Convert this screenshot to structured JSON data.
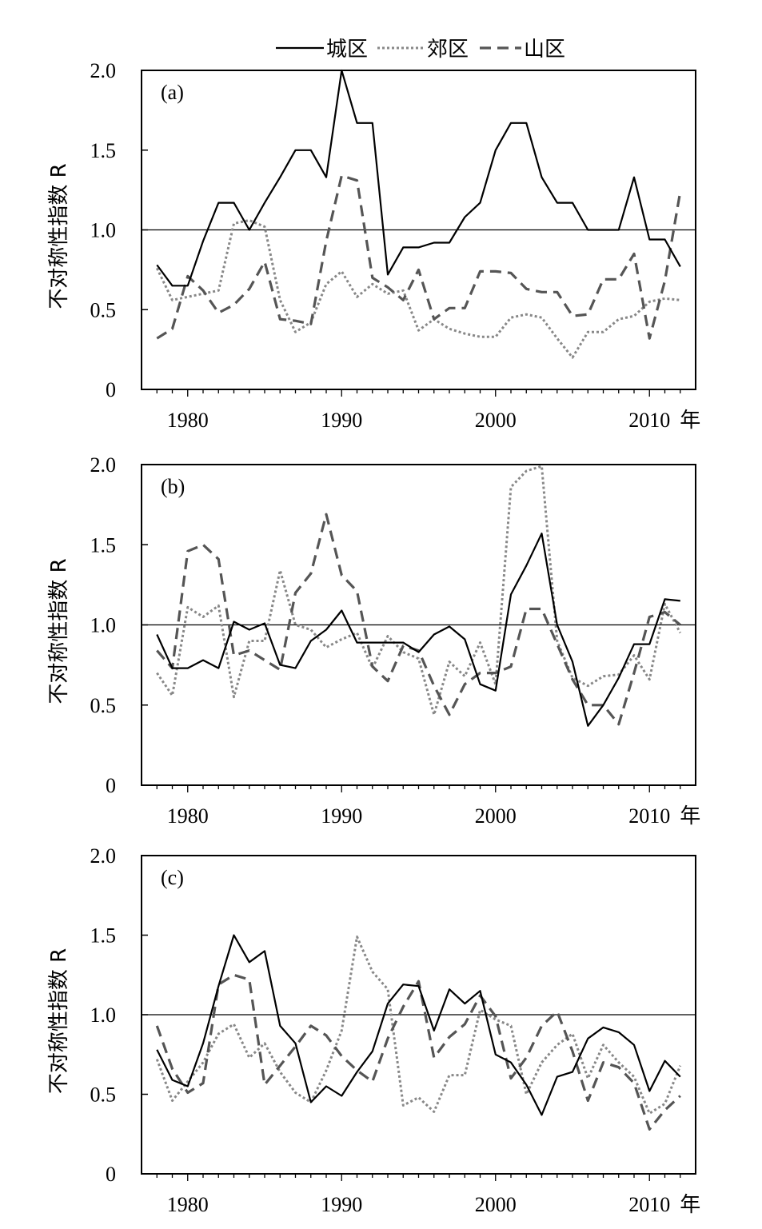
{
  "legend": [
    {
      "label": "城区",
      "style": "solid",
      "color": "#000000"
    },
    {
      "label": "郊区",
      "style": "dotted",
      "color": "#888888"
    },
    {
      "label": "山区",
      "style": "dashed",
      "color": "#555555"
    }
  ],
  "chart_data": [
    {
      "type": "line",
      "panel_label": "(a)",
      "ylabel": "不对称性指数 R",
      "xlabel": "年",
      "xlim": [
        1977,
        2013
      ],
      "ylim": [
        0,
        2.0
      ],
      "x_ticks": [
        "1980",
        "1990",
        "2000",
        "2010"
      ],
      "x_unit": "年",
      "y_ticks": [
        "0",
        "0.5",
        "1.0",
        "1.5",
        "2.0"
      ],
      "reference_line": 1.0,
      "x": [
        1978,
        1979,
        1980,
        1981,
        1982,
        1983,
        1984,
        1985,
        1986,
        1987,
        1988,
        1989,
        1990,
        1991,
        1992,
        1993,
        1994,
        1995,
        1996,
        1997,
        1998,
        1999,
        2000,
        2001,
        2002,
        2003,
        2004,
        2005,
        2006,
        2007,
        2008,
        2009,
        2010,
        2011,
        2012
      ],
      "series": [
        {
          "name": "城区",
          "values": [
            0.78,
            0.65,
            0.65,
            0.93,
            1.17,
            1.17,
            1.0,
            1.17,
            1.33,
            1.5,
            1.5,
            1.33,
            2.0,
            1.67,
            1.67,
            0.72,
            0.89,
            0.89,
            0.92,
            0.92,
            1.08,
            1.17,
            1.5,
            1.67,
            1.67,
            1.33,
            1.17,
            1.17,
            1.0,
            1.0,
            1.0,
            1.33,
            0.94,
            0.94,
            0.77
          ]
        },
        {
          "name": "郊区",
          "values": [
            0.76,
            0.56,
            0.58,
            0.6,
            0.62,
            1.04,
            1.06,
            1.02,
            0.56,
            0.36,
            0.42,
            0.66,
            0.74,
            0.58,
            0.66,
            0.6,
            0.62,
            0.37,
            0.44,
            0.38,
            0.35,
            0.33,
            0.33,
            0.45,
            0.47,
            0.45,
            0.32,
            0.2,
            0.36,
            0.36,
            0.44,
            0.46,
            0.55,
            0.57,
            0.56
          ]
        },
        {
          "name": "山区",
          "values": [
            0.32,
            0.38,
            0.71,
            0.62,
            0.48,
            0.53,
            0.63,
            0.8,
            0.44,
            0.43,
            0.41,
            0.93,
            1.34,
            1.31,
            0.7,
            0.64,
            0.56,
            0.75,
            0.44,
            0.51,
            0.51,
            0.74,
            0.74,
            0.73,
            0.63,
            0.61,
            0.61,
            0.46,
            0.47,
            0.69,
            0.69,
            0.85,
            0.32,
            0.68,
            1.24
          ]
        }
      ]
    },
    {
      "type": "line",
      "panel_label": "(b)",
      "ylabel": "不对称性指数 R",
      "xlabel": "年",
      "xlim": [
        1977,
        2013
      ],
      "ylim": [
        0,
        2.0
      ],
      "x_ticks": [
        "1980",
        "1990",
        "2000",
        "2010"
      ],
      "x_unit": "年",
      "y_ticks": [
        "0",
        "0.5",
        "1.0",
        "1.5",
        "2.0"
      ],
      "reference_line": 1.0,
      "x": [
        1978,
        1979,
        1980,
        1981,
        1982,
        1983,
        1984,
        1985,
        1986,
        1987,
        1988,
        1989,
        1990,
        1991,
        1992,
        1993,
        1994,
        1995,
        1996,
        1997,
        1998,
        1999,
        2000,
        2001,
        2002,
        2003,
        2004,
        2005,
        2006,
        2007,
        2008,
        2009,
        2010,
        2011,
        2012
      ],
      "series": [
        {
          "name": "城区",
          "values": [
            0.94,
            0.73,
            0.73,
            0.78,
            0.73,
            1.02,
            0.97,
            1.01,
            0.75,
            0.73,
            0.9,
            0.97,
            1.09,
            0.89,
            0.89,
            0.89,
            0.89,
            0.83,
            0.94,
            0.99,
            0.91,
            0.63,
            0.59,
            1.19,
            1.37,
            1.57,
            1.0,
            0.77,
            0.37,
            0.5,
            0.67,
            0.88,
            0.88,
            1.16,
            1.15
          ]
        },
        {
          "name": "郊区",
          "values": [
            0.7,
            0.56,
            1.11,
            1.05,
            1.12,
            0.55,
            0.9,
            0.9,
            1.34,
            1.0,
            0.97,
            0.86,
            0.91,
            0.95,
            0.73,
            0.93,
            0.83,
            0.79,
            0.44,
            0.77,
            0.68,
            0.89,
            0.63,
            1.86,
            1.96,
            1.99,
            0.9,
            0.67,
            0.62,
            0.68,
            0.69,
            0.81,
            0.66,
            1.13,
            0.95
          ]
        },
        {
          "name": "山区",
          "values": [
            0.84,
            0.73,
            1.46,
            1.5,
            1.41,
            0.81,
            0.84,
            0.78,
            0.72,
            1.2,
            1.32,
            1.69,
            1.31,
            1.21,
            0.74,
            0.65,
            0.87,
            0.84,
            0.62,
            0.44,
            0.63,
            0.7,
            0.7,
            0.74,
            1.1,
            1.1,
            0.88,
            0.66,
            0.5,
            0.5,
            0.38,
            0.7,
            1.05,
            1.08,
            1.0
          ]
        }
      ]
    },
    {
      "type": "line",
      "panel_label": "(c)",
      "ylabel": "不对称性指数 R",
      "xlabel": "年",
      "xlim": [
        1977,
        2013
      ],
      "ylim": [
        0,
        2.0
      ],
      "x_ticks": [
        "1980",
        "1990",
        "2000",
        "2010"
      ],
      "x_unit": "年",
      "y_ticks": [
        "0",
        "0.5",
        "1.0",
        "1.5",
        "2.0"
      ],
      "reference_line": 1.0,
      "x": [
        1978,
        1979,
        1980,
        1981,
        1982,
        1983,
        1984,
        1985,
        1986,
        1987,
        1988,
        1989,
        1990,
        1991,
        1992,
        1993,
        1994,
        1995,
        1996,
        1997,
        1998,
        1999,
        2000,
        2001,
        2002,
        2003,
        2004,
        2005,
        2006,
        2007,
        2008,
        2009,
        2010,
        2011,
        2012
      ],
      "series": [
        {
          "name": "城区",
          "values": [
            0.78,
            0.59,
            0.55,
            0.82,
            1.18,
            1.5,
            1.33,
            1.4,
            0.93,
            0.82,
            0.45,
            0.55,
            0.49,
            0.64,
            0.77,
            1.07,
            1.19,
            1.18,
            0.9,
            1.16,
            1.07,
            1.15,
            0.75,
            0.7,
            0.56,
            0.37,
            0.61,
            0.64,
            0.85,
            0.92,
            0.89,
            0.81,
            0.52,
            0.71,
            0.61
          ]
        },
        {
          "name": "郊区",
          "values": [
            0.72,
            0.46,
            0.58,
            0.7,
            0.88,
            0.94,
            0.73,
            0.82,
            0.64,
            0.51,
            0.45,
            0.65,
            0.9,
            1.49,
            1.27,
            1.16,
            0.43,
            0.48,
            0.39,
            0.62,
            0.62,
            1.03,
            0.97,
            0.93,
            0.5,
            0.7,
            0.81,
            0.88,
            0.6,
            0.81,
            0.7,
            0.61,
            0.38,
            0.44,
            0.68
          ]
        },
        {
          "name": "山区",
          "values": [
            0.93,
            0.66,
            0.51,
            0.57,
            1.19,
            1.25,
            1.22,
            0.56,
            0.68,
            0.8,
            0.93,
            0.87,
            0.74,
            0.65,
            0.58,
            0.85,
            1.05,
            1.21,
            0.73,
            0.86,
            0.94,
            1.12,
            0.99,
            0.6,
            0.73,
            0.93,
            1.02,
            0.77,
            0.46,
            0.7,
            0.67,
            0.57,
            0.28,
            0.4,
            0.49
          ]
        }
      ]
    }
  ]
}
